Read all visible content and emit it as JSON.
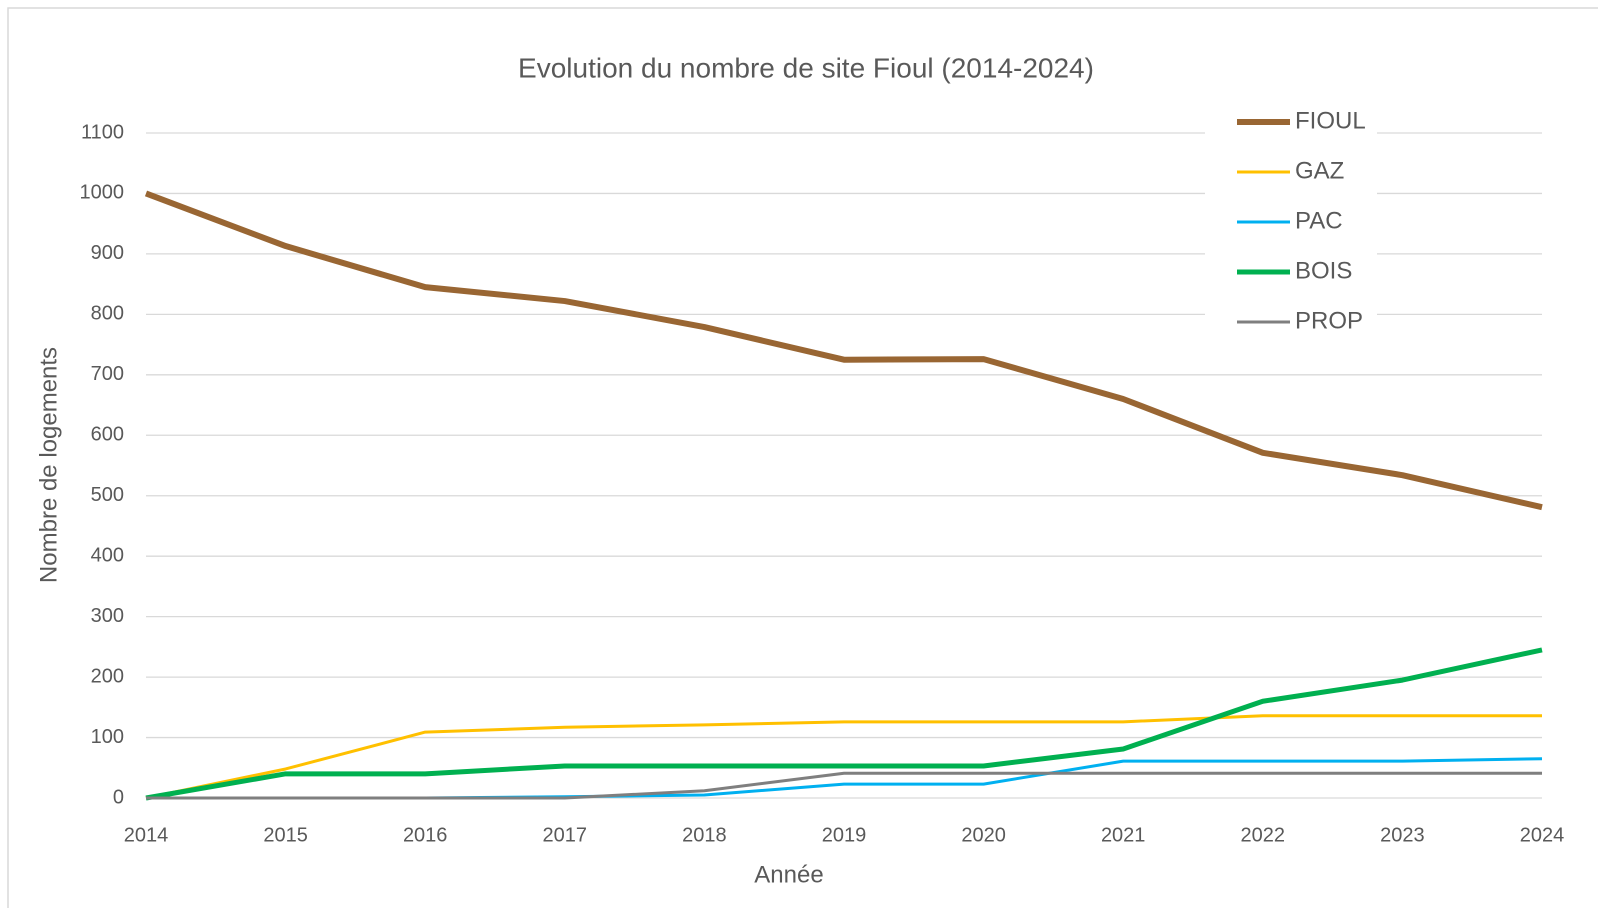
{
  "chart_data": {
    "type": "line",
    "title": "Evolution du nombre de site Fioul (2014-2024)",
    "x_label": "Année",
    "y_label": "Nombre de logements",
    "x": [
      2014,
      2015,
      2016,
      2017,
      2018,
      2019,
      2020,
      2021,
      2022,
      2023,
      2024
    ],
    "xlim": [
      2014,
      2024
    ],
    "xticks": [
      2014,
      2015,
      2016,
      2017,
      2018,
      2019,
      2020,
      2021,
      2022,
      2023,
      2024
    ],
    "ylim": [
      0,
      1100
    ],
    "yticks": [
      0,
      100,
      200,
      300,
      400,
      500,
      600,
      700,
      800,
      900,
      1000,
      1100
    ],
    "grid": true,
    "legend": "upper right",
    "series": [
      {
        "name": "FIOUL",
        "color": "#996633",
        "values": [
          1000,
          913,
          845,
          822,
          779,
          725,
          726,
          660,
          571,
          534,
          481
        ]
      },
      {
        "name": "GAZ",
        "color": "#ffc000",
        "values": [
          0,
          48,
          109,
          117,
          121,
          126,
          126,
          126,
          136,
          136,
          136
        ]
      },
      {
        "name": "PAC",
        "color": "#00b0f0",
        "values": [
          0,
          0,
          0,
          2,
          5,
          23,
          23,
          61,
          61,
          61,
          65
        ]
      },
      {
        "name": "BOIS",
        "color": "#00b050",
        "values": [
          0,
          40,
          40,
          53,
          53,
          53,
          53,
          81,
          160,
          195,
          245
        ]
      },
      {
        "name": "PROP",
        "color": "#7f7f7f",
        "values": [
          0,
          0,
          0,
          0,
          12,
          41,
          41,
          41,
          41,
          41,
          41
        ]
      }
    ]
  }
}
